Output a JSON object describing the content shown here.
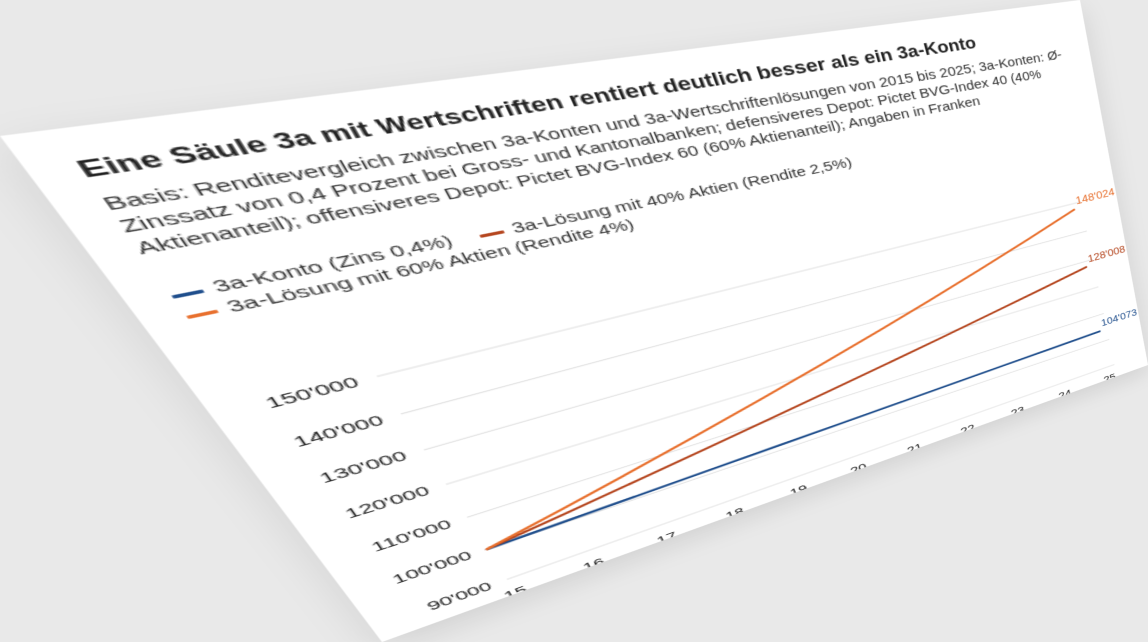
{
  "colors": {
    "background": "#e9e9e9",
    "card": "#ffffff",
    "grid": "#dcdcdc"
  },
  "chart_data": {
    "type": "line",
    "title": "Eine Säule 3a mit Wertschriften rentiert deutlich besser als ein 3a-Konto",
    "subtitle": "Basis: Renditevergleich zwischen 3a-Konten und 3a-Wertschriftenlösungen von 2015 bis 2025; 3a-Konten: Ø-Zinssatz von 0,4 Prozent bei Gross- und Kantonalbanken; defensiveres Depot: Pictet BVG-Index 40 (40% Aktienanteil); offensiveres Depot: Pictet BVG-Index 60 (60% Aktienanteil); Angaben in Franken",
    "x": [
      "15",
      "16",
      "17",
      "18",
      "19",
      "20",
      "21",
      "22",
      "23",
      "24",
      "25"
    ],
    "ylim": [
      90000,
      150000
    ],
    "yticks": [
      90000,
      100000,
      110000,
      120000,
      130000,
      140000,
      150000
    ],
    "ytick_labels": [
      "90'000",
      "100'000",
      "110'000",
      "120'000",
      "130'000",
      "140'000",
      "150'000"
    ],
    "grid": true,
    "legend_position": "top-left",
    "series": [
      {
        "name": "3a-Konto (Zins 0,4%)",
        "color": "#1f4e8c",
        "values": [
          100000,
          100400,
          100802,
          101205,
          101610,
          102016,
          102424,
          102834,
          103245,
          103658,
          104073
        ],
        "end_label": "104'073"
      },
      {
        "name": "3a-Lösung mit 40% Aktien (Rendite 2,5%)",
        "color": "#b5461f",
        "values": [
          100000,
          102500,
          105063,
          107689,
          110381,
          113141,
          115969,
          118869,
          121840,
          124886,
          128008
        ],
        "end_label": "128'008"
      },
      {
        "name": "3a-Lösung mit 60% Aktien (Rendite 4%)",
        "color": "#e8702e",
        "values": [
          100000,
          104000,
          108160,
          112486,
          116986,
          121665,
          126532,
          131593,
          136857,
          142331,
          148024
        ],
        "end_label": "148'024"
      }
    ]
  }
}
